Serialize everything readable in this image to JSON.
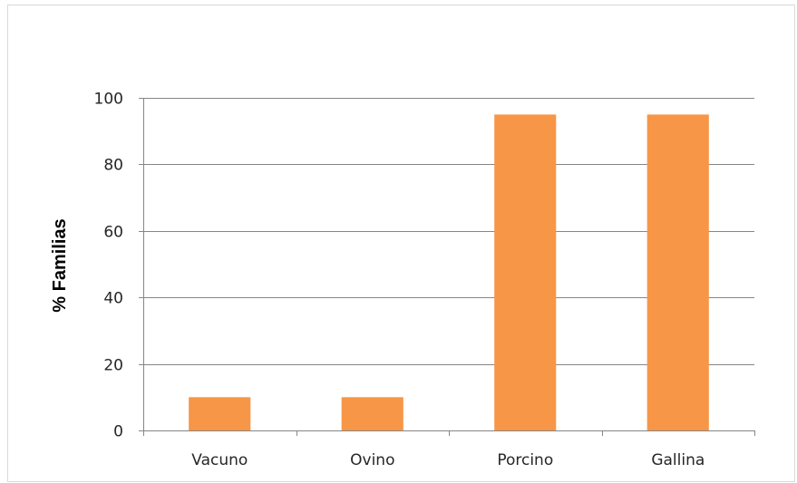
{
  "chart_data": {
    "type": "bar",
    "title": "",
    "xlabel": "",
    "ylabel": "% Familias",
    "categories": [
      "Vacuno",
      "Ovino",
      "Porcino",
      "Gallina"
    ],
    "values": [
      10,
      10,
      95,
      95
    ],
    "ylim": [
      0,
      100
    ],
    "yticks": [
      0,
      20,
      40,
      60,
      80,
      100
    ],
    "grid": true,
    "legend": "none",
    "colors": {
      "bar": "#f79646",
      "grid": "#868686",
      "axis": "#868686",
      "text": "#262626"
    }
  }
}
